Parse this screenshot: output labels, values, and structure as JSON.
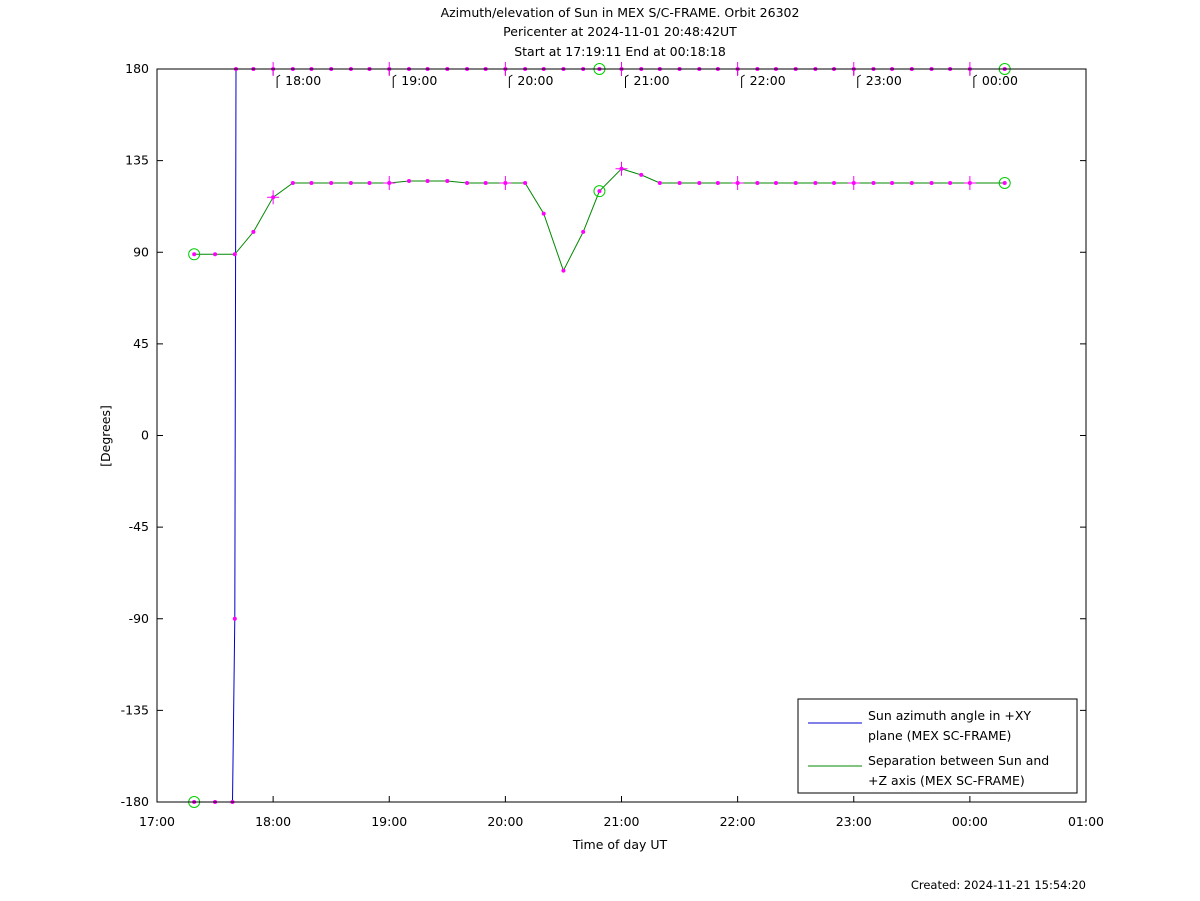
{
  "chart_data": {
    "type": "line",
    "title_lines": [
      "Azimuth/elevation of Sun in MEX S/C-FRAME.  Orbit 26302",
      "Pericenter at 2024-11-01 20:48:42UT",
      "Start at 17:19:11 End at 00:18:18"
    ],
    "xlabel": "Time of day UT",
    "ylabel": "[Degrees]",
    "x_unit": "hours of day UT (values beyond 24 are after midnight)",
    "xlim": [
      17,
      25
    ],
    "ylim": [
      -180,
      180
    ],
    "xticks": [
      {
        "value": 17,
        "label": "17:00"
      },
      {
        "value": 18,
        "label": "18:00"
      },
      {
        "value": 19,
        "label": "19:00"
      },
      {
        "value": 20,
        "label": "20:00"
      },
      {
        "value": 21,
        "label": "21:00"
      },
      {
        "value": 22,
        "label": "22:00"
      },
      {
        "value": 23,
        "label": "23:00"
      },
      {
        "value": 24,
        "label": "00:00"
      },
      {
        "value": 25,
        "label": "01:00"
      }
    ],
    "yticks": [
      {
        "value": 180,
        "label": "180"
      },
      {
        "value": 135,
        "label": "135"
      },
      {
        "value": 90,
        "label": "90"
      },
      {
        "value": 45,
        "label": "45"
      },
      {
        "value": 0,
        "label": "0"
      },
      {
        "value": -45,
        "label": "-45"
      },
      {
        "value": -90,
        "label": "-90"
      },
      {
        "value": -135,
        "label": "-135"
      },
      {
        "value": -180,
        "label": "-180"
      }
    ],
    "hour_markers": [
      {
        "x": 18,
        "label": "18:00"
      },
      {
        "x": 19,
        "label": "19:00"
      },
      {
        "x": 20,
        "label": "20:00"
      },
      {
        "x": 21,
        "label": "21:00"
      },
      {
        "x": 22,
        "label": "22:00"
      },
      {
        "x": 23,
        "label": "23:00"
      },
      {
        "x": 24,
        "label": "00:00"
      }
    ],
    "series": [
      {
        "name": "Sun azimuth angle in +XY plane (MEX SC-FRAME)",
        "legend_lines": [
          "Sun azimuth angle in +XY",
          "plane (MEX SC-FRAME)"
        ],
        "color": "#0000cc",
        "points": [
          [
            17.32,
            -180
          ],
          [
            17.5,
            -180
          ],
          [
            17.65,
            -180
          ],
          [
            17.67,
            -90
          ],
          [
            17.68,
            180
          ],
          [
            17.83,
            180
          ],
          [
            18.0,
            180
          ],
          [
            18.17,
            180
          ],
          [
            18.33,
            180
          ],
          [
            18.5,
            180
          ],
          [
            18.67,
            180
          ],
          [
            18.83,
            180
          ],
          [
            19.0,
            180
          ],
          [
            19.17,
            180
          ],
          [
            19.33,
            180
          ],
          [
            19.5,
            180
          ],
          [
            19.67,
            180
          ],
          [
            19.83,
            180
          ],
          [
            20.0,
            180
          ],
          [
            20.17,
            180
          ],
          [
            20.33,
            180
          ],
          [
            20.5,
            180
          ],
          [
            20.67,
            180
          ],
          [
            20.81,
            180
          ],
          [
            21.0,
            180
          ],
          [
            21.17,
            180
          ],
          [
            21.33,
            180
          ],
          [
            21.5,
            180
          ],
          [
            21.67,
            180
          ],
          [
            21.83,
            180
          ],
          [
            22.0,
            180
          ],
          [
            22.17,
            180
          ],
          [
            22.33,
            180
          ],
          [
            22.5,
            180
          ],
          [
            22.67,
            180
          ],
          [
            22.83,
            180
          ],
          [
            23.0,
            180
          ],
          [
            23.17,
            180
          ],
          [
            23.33,
            180
          ],
          [
            23.5,
            180
          ],
          [
            23.67,
            180
          ],
          [
            23.83,
            180
          ],
          [
            24.0,
            180
          ],
          [
            24.3,
            180
          ]
        ]
      },
      {
        "name": "Separation between Sun and +Z axis (MEX SC-FRAME)",
        "legend_lines": [
          "Separation between Sun and",
          "+Z axis (MEX SC-FRAME)"
        ],
        "color": "#008800",
        "points": [
          [
            17.32,
            89
          ],
          [
            17.5,
            89
          ],
          [
            17.67,
            89
          ],
          [
            17.83,
            100
          ],
          [
            18.0,
            117
          ],
          [
            18.17,
            124
          ],
          [
            18.33,
            124
          ],
          [
            18.5,
            124
          ],
          [
            18.67,
            124
          ],
          [
            18.83,
            124
          ],
          [
            19.0,
            124
          ],
          [
            19.17,
            125
          ],
          [
            19.33,
            125
          ],
          [
            19.5,
            125
          ],
          [
            19.67,
            124
          ],
          [
            19.83,
            124
          ],
          [
            20.0,
            124
          ],
          [
            20.17,
            124
          ],
          [
            20.33,
            109
          ],
          [
            20.5,
            81
          ],
          [
            20.67,
            100
          ],
          [
            20.81,
            120
          ],
          [
            21.0,
            131
          ],
          [
            21.17,
            128
          ],
          [
            21.33,
            124
          ],
          [
            21.5,
            124
          ],
          [
            21.67,
            124
          ],
          [
            21.83,
            124
          ],
          [
            22.0,
            124
          ],
          [
            22.17,
            124
          ],
          [
            22.33,
            124
          ],
          [
            22.5,
            124
          ],
          [
            22.67,
            124
          ],
          [
            22.83,
            124
          ],
          [
            23.0,
            124
          ],
          [
            23.17,
            124
          ],
          [
            23.33,
            124
          ],
          [
            23.5,
            124
          ],
          [
            23.67,
            124
          ],
          [
            23.83,
            124
          ],
          [
            24.0,
            124
          ],
          [
            24.3,
            124
          ]
        ]
      }
    ],
    "marker_color": "#ff00ff",
    "circle_color": "#00cc00",
    "circle_markers": [
      [
        17.32,
        -180
      ],
      [
        17.32,
        89
      ],
      [
        20.81,
        180
      ],
      [
        20.81,
        120
      ],
      [
        24.3,
        180
      ],
      [
        24.3,
        124
      ]
    ],
    "legend_position": "bottom-right"
  },
  "footer": {
    "created": "Created: 2024-11-21 15:54:20"
  }
}
